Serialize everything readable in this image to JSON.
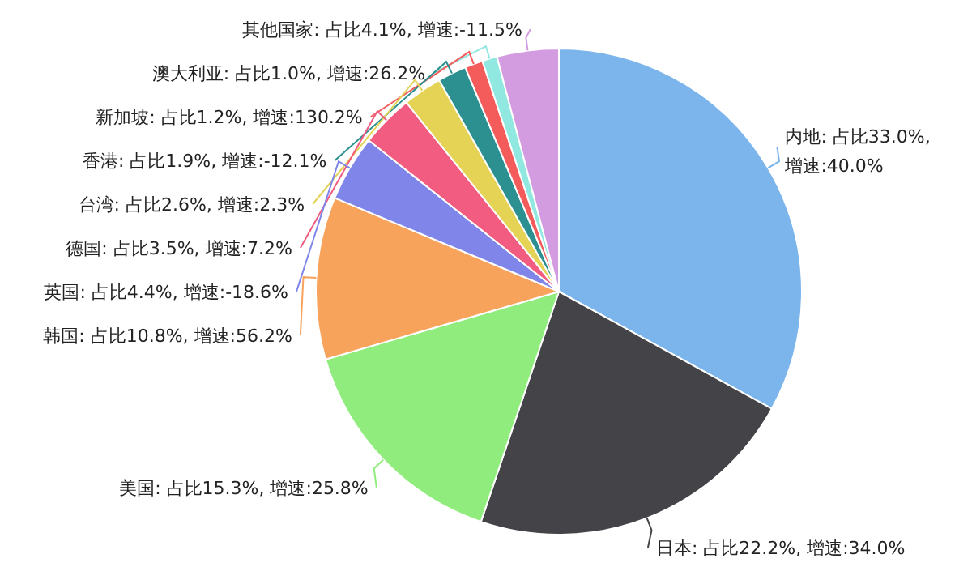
{
  "chart_data": {
    "type": "pie",
    "categories": [
      "内地",
      "日本",
      "美国",
      "韩国",
      "英国",
      "德国",
      "台湾",
      "香港",
      "新加坡",
      "澳大利亚",
      "其他国家"
    ],
    "values": [
      33.0,
      22.2,
      15.3,
      10.8,
      4.4,
      3.5,
      2.6,
      1.9,
      1.2,
      1.0,
      4.1
    ],
    "colors": [
      "#7cb5ec",
      "#434348",
      "#90ed7d",
      "#f7a35c",
      "#8085e9",
      "#f15c80",
      "#e4d354",
      "#2b908f",
      "#f45b5b",
      "#91e8e1",
      "#d39ce0"
    ],
    "value_labels": [
      ": 占比33.0%, 增速:40.0%",
      ": 占比22.2%, 增速:34.0%",
      ": 占比15.3%, 增速:25.8%",
      ": 占比10.8%, 增速:56.2%",
      ": 占比4.4%, 增速:-18.6%",
      ": 占比3.5%, 增速:7.2%",
      ": 占比2.6%, 增速:2.3%",
      ": 占比1.9%, 增速:-12.1%",
      ": 占比1.2%, 增速:130.2%",
      ": 占比1.0%, 增速:26.2%",
      ": 占比4.1%, 增速:-11.5%"
    ]
  }
}
